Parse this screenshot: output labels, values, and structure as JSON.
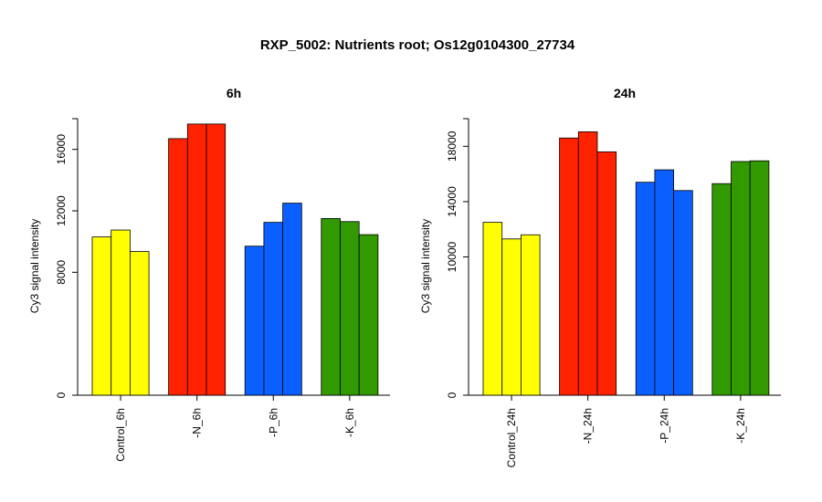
{
  "title": "RXP_5002: Nutrients root; Os12g0104300_27734",
  "chart_data": [
    {
      "type": "bar",
      "title": "6h",
      "ylabel": "Cy3 signal intensity",
      "ylim": [
        0,
        18000
      ],
      "yticks": [
        0,
        8000,
        12000,
        16000
      ],
      "groups": [
        {
          "label": "Control_6h",
          "color": "#ffff00",
          "values": [
            10300,
            10750,
            9350
          ]
        },
        {
          "label": "-N_6h",
          "color": "#ff2200",
          "values": [
            16700,
            17650,
            17650
          ]
        },
        {
          "label": "-P_6h",
          "color": "#0b5fff",
          "values": [
            9700,
            11250,
            12500
          ]
        },
        {
          "label": "-K_6h",
          "color": "#339900",
          "values": [
            11500,
            11300,
            10450
          ]
        }
      ]
    },
    {
      "type": "bar",
      "title": "24h",
      "ylabel": "Cy3 signal intensity",
      "ylim": [
        0,
        20000
      ],
      "yticks": [
        0,
        10000,
        14000,
        18000
      ],
      "groups": [
        {
          "label": "Control_24h",
          "color": "#ffff00",
          "values": [
            12500,
            11300,
            11600
          ]
        },
        {
          "label": "-N_24h",
          "color": "#ff2200",
          "values": [
            18600,
            19050,
            17600
          ]
        },
        {
          "label": "-P_24h",
          "color": "#0b5fff",
          "values": [
            15400,
            16300,
            14800
          ]
        },
        {
          "label": "-K_24h",
          "color": "#339900",
          "values": [
            15300,
            16900,
            16950
          ]
        }
      ]
    }
  ]
}
